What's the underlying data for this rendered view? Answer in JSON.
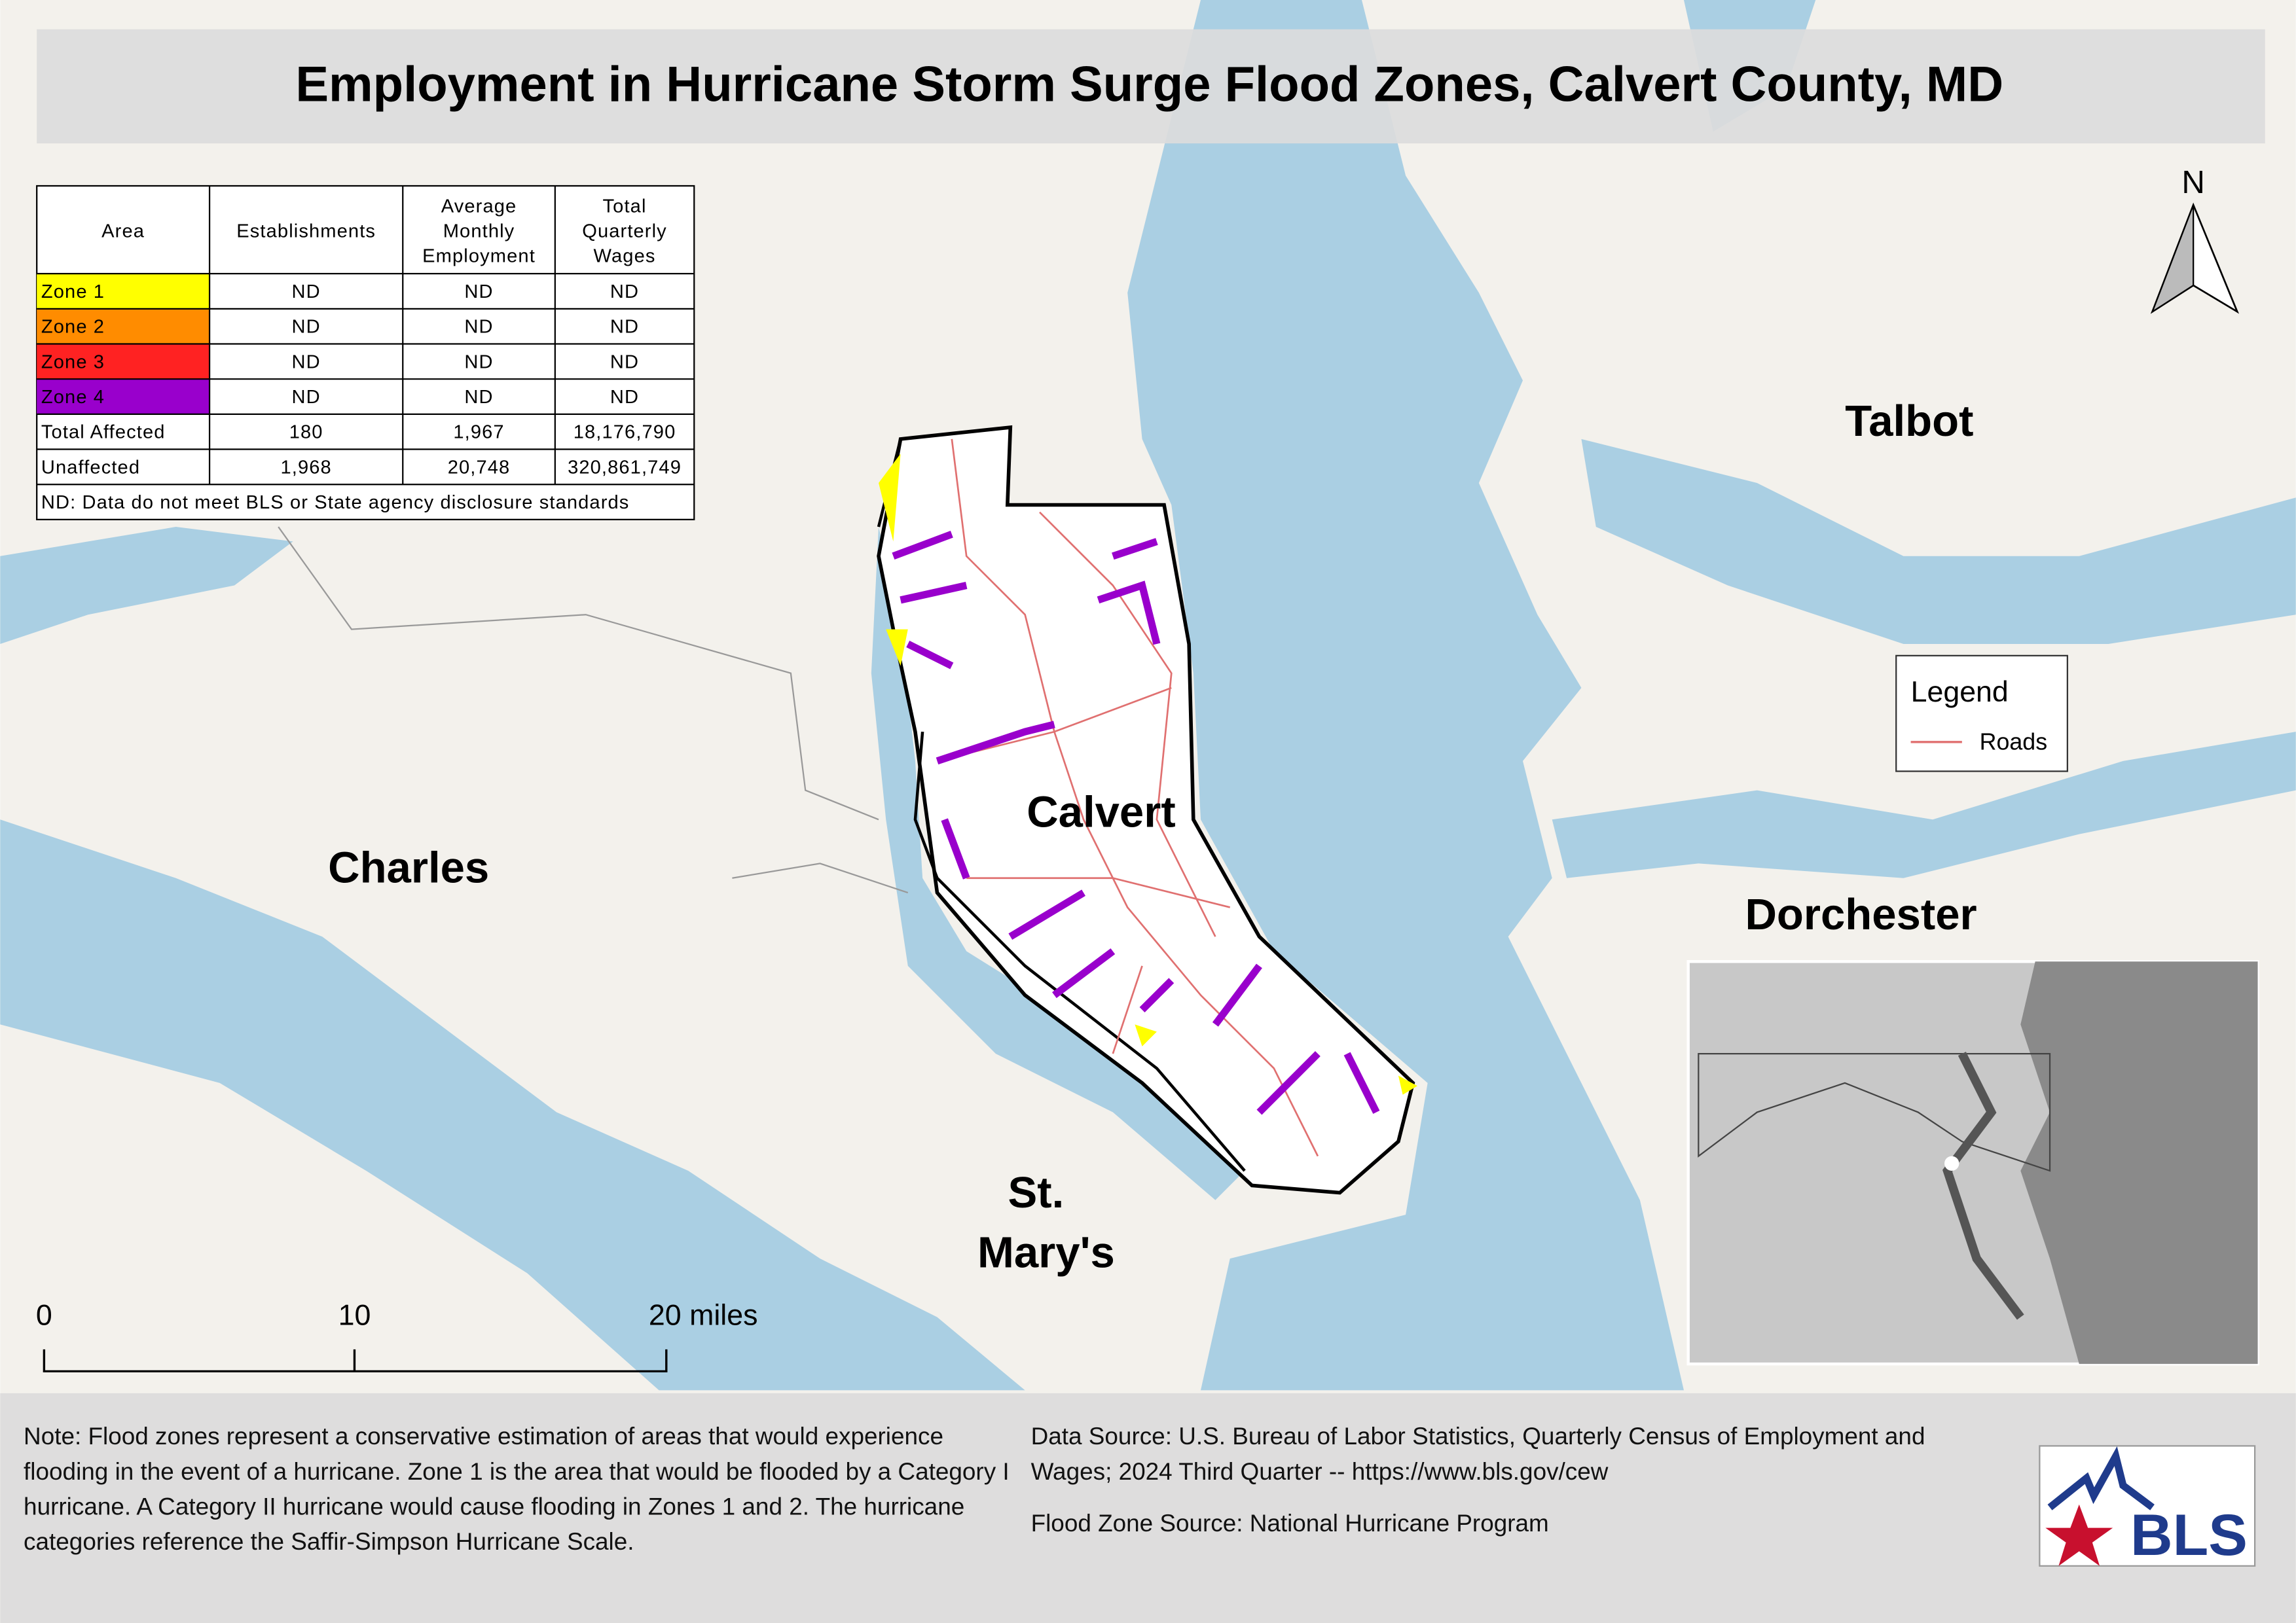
{
  "title": "Employment in Hurricane Storm Surge Flood Zones, Calvert County, MD",
  "table": {
    "header": [
      "Area",
      "Establishments",
      "Average Monthly Employment",
      "Total Quarterly Wages"
    ],
    "rows": [
      {
        "cells": [
          "Zone 1",
          "ND",
          "ND",
          "ND"
        ],
        "color": "#ffff00"
      },
      {
        "cells": [
          "Zone 2",
          "ND",
          "ND",
          "ND"
        ],
        "color": "#ff8c00"
      },
      {
        "cells": [
          "Zone 3",
          "ND",
          "ND",
          "ND"
        ],
        "color": "#ff2222"
      },
      {
        "cells": [
          "Zone 4",
          "ND",
          "ND",
          "ND"
        ],
        "color": "#9900cc"
      },
      {
        "cells": [
          "Total Affected",
          "180",
          "1,967",
          "18,176,790"
        ]
      },
      {
        "cells": [
          "Unaffected",
          "1,968",
          "20,748",
          "320,861,749"
        ]
      }
    ],
    "footnote": "ND: Data do not meet BLS or State agency disclosure standards"
  },
  "places": [
    "Talbot",
    "Calvert",
    "Charles",
    "Dorchester",
    "St. Mary's"
  ],
  "legend": {
    "title": "Legend",
    "items": [
      "Roads"
    ]
  },
  "north": "N",
  "scale": [
    "0",
    "10",
    "20 miles"
  ],
  "footer": {
    "note": "Note: Flood zones represent a conservative estimation of areas that would experience flooding in the event of a hurricane. Zone 1 is the area that would be flooded by a Category I hurricane. A Category II hurricane would cause flooding in Zones 1 and 2. The hurricane categories reference the Saffir-Simpson Hurricane Scale.",
    "data_source": "Data Source: U.S. Bureau of Labor Statistics, Quarterly Census of Employment and Wages; 2024 Third Quarter -- https://www.bls.gov/cew",
    "flood_source": "Flood Zone Source: National Hurricane Program",
    "logo": "BLS"
  }
}
